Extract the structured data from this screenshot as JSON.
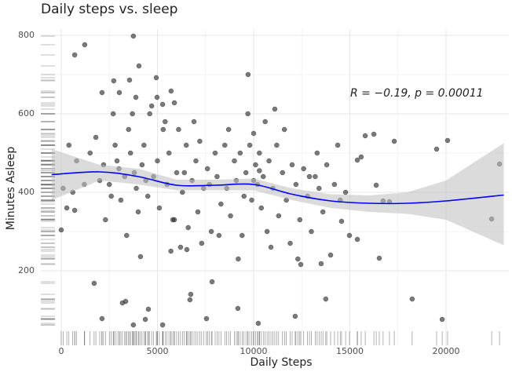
{
  "chart_data": {
    "type": "scatter",
    "title": "Daily steps vs. sleep",
    "xlabel": "Daily Steps",
    "ylabel": "Minutes Asleep",
    "annotation": "R = −0.19, p = 0.00011",
    "color": "#333333",
    "grid": true,
    "rug": true,
    "xlim": [
      -1060,
      23265
    ],
    "ylim": [
      10,
      815
    ],
    "xticks": [
      0,
      5000,
      10000,
      15000,
      20000
    ],
    "yticks": [
      200,
      400,
      600,
      800
    ],
    "x": [
      700,
      1220,
      3750,
      4040,
      4940,
      9710,
      2120,
      2730,
      3020,
      3550,
      3880,
      4980,
      5270,
      5710,
      5880,
      11100,
      0,
      290,
      700,
      1710,
      2120,
      3350,
      3180,
      3750,
      4530,
      4370,
      5270,
      6730,
      6690,
      7840,
      7550,
      9180,
      10240,
      12160,
      13750,
      18240,
      19800,
      22370,
      22780,
      20080,
      19510,
      17310,
      16250,
      15800,
      16530,
      15390,
      15590,
      14370,
      14780,
      15390,
      14980,
      14570,
      16370,
      16730,
      17060,
      12450,
      13510,
      4120,
      6530,
      5880,
      1500,
      1800,
      2000,
      2200,
      2500,
      2600,
      2800,
      3000,
      3100,
      3300,
      3500,
      3600,
      3800,
      3900,
      4000,
      4200,
      4300,
      4500,
      4600,
      4800,
      5000,
      5100,
      5300,
      5500,
      5600,
      5800,
      6000,
      6100,
      6300,
      6500,
      6600,
      6800,
      7000,
      7100,
      7200,
      7400,
      7600,
      7800,
      8000,
      8100,
      8300,
      8500,
      8600,
      8800,
      9000,
      9100,
      9300,
      9400,
      9600,
      9800,
      9900,
      10000,
      10100,
      10200,
      10300,
      10400,
      10500,
      10700,
      10800,
      11000,
      11200,
      11300,
      11500,
      11700,
      11900,
      12000,
      12200,
      12400,
      12600,
      12800,
      13000,
      13200,
      13400,
      13600,
      13800,
      14000,
      14200,
      14500,
      3700,
      4700,
      5400,
      6900,
      8700,
      9700,
      10600,
      2300,
      1200,
      800,
      400,
      100,
      600,
      3400,
      5700,
      7300,
      9200,
      10900,
      12300,
      2700,
      6200,
      8200,
      12900,
      13300,
      11600,
      10000,
      9500,
      7700,
      6400,
      4400,
      2900,
      10300
    ],
    "y": [
      750,
      776,
      798,
      722,
      692,
      700,
      654,
      684,
      654,
      686,
      642,
      642,
      624,
      658,
      628,
      612,
      304,
      360,
      354,
      168,
      78,
      122,
      118,
      62,
      102,
      76,
      62,
      140,
      126,
      172,
      78,
      104,
      66,
      84,
      128,
      128,
      76,
      332,
      472,
      532,
      510,
      530,
      548,
      544,
      232,
      482,
      490,
      520,
      400,
      280,
      290,
      326,
      418,
      378,
      376,
      216,
      218,
      236,
      254,
      330,
      500,
      540,
      430,
      470,
      420,
      390,
      520,
      460,
      380,
      440,
      560,
      500,
      450,
      410,
      350,
      470,
      520,
      390,
      600,
      440,
      480,
      360,
      560,
      420,
      500,
      330,
      450,
      560,
      400,
      520,
      310,
      430,
      480,
      350,
      530,
      410,
      460,
      300,
      500,
      440,
      370,
      520,
      410,
      340,
      480,
      430,
      500,
      290,
      450,
      520,
      380,
      550,
      470,
      420,
      500,
      360,
      440,
      300,
      480,
      410,
      520,
      340,
      450,
      380,
      270,
      470,
      420,
      330,
      460,
      390,
      300,
      440,
      410,
      350,
      470,
      240,
      420,
      380,
      600,
      620,
      580,
      580,
      560,
      600,
      580,
      330,
      420,
      480,
      520,
      410,
      400,
      290,
      250,
      270,
      230,
      260,
      230,
      600,
      260,
      290,
      440,
      500,
      560,
      430,
      390,
      420,
      450,
      430,
      480,
      455
    ],
    "smooth": {
      "color": "#0000ff",
      "band_color": "#bdbdbd",
      "x": [
        -500,
        2000,
        4000,
        6000,
        8000,
        10000,
        12000,
        14000,
        16000,
        18000,
        20000,
        23000
      ],
      "y": [
        445,
        452,
        440,
        418,
        418,
        420,
        395,
        378,
        372,
        372,
        378,
        393
      ],
      "lower": [
        380,
        430,
        420,
        405,
        405,
        405,
        380,
        360,
        350,
        345,
        330,
        265
      ],
      "upper": [
        510,
        470,
        460,
        432,
        432,
        435,
        410,
        395,
        392,
        400,
        430,
        525
      ]
    }
  }
}
